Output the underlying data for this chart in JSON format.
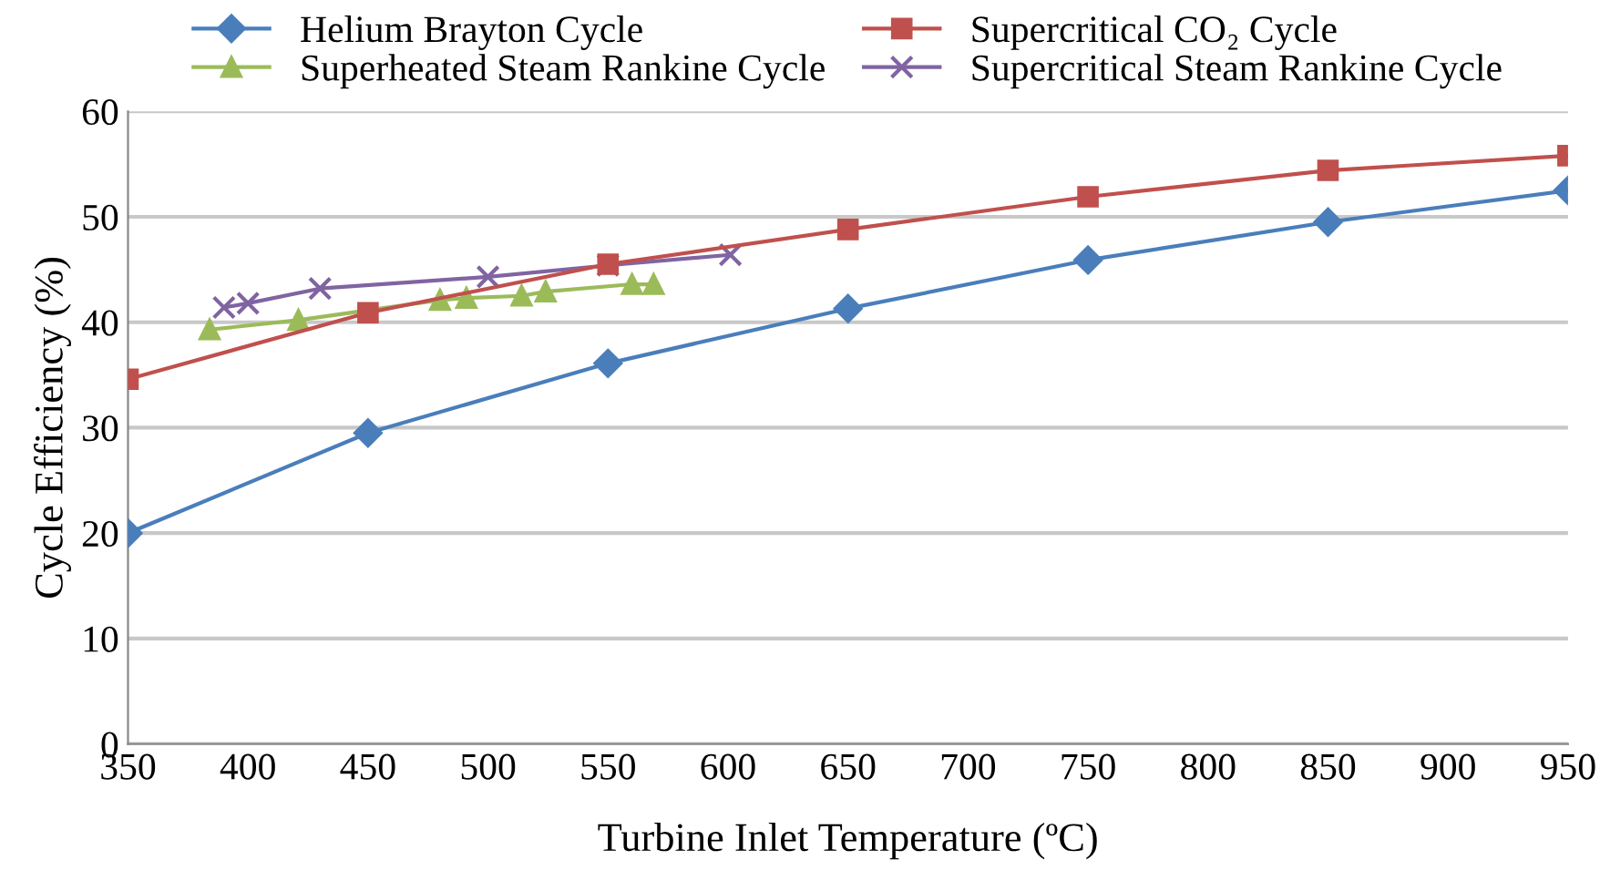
{
  "chart_data": {
    "type": "line",
    "xlabel": "Turbine Inlet Temperature (ºC)",
    "ylabel": "Cycle Efficiency (%)",
    "xlim": [
      350,
      950
    ],
    "xticks": [
      350,
      400,
      450,
      500,
      550,
      600,
      650,
      700,
      750,
      800,
      850,
      900,
      950
    ],
    "ylim": [
      0,
      60
    ],
    "yticks": [
      0,
      10,
      20,
      30,
      40,
      50,
      60
    ],
    "grid": "y",
    "legend": "top",
    "line_style": "solid",
    "series": [
      {
        "name": "Helium Brayton Cycle",
        "color": "#4a7ebb",
        "marker": "diamond",
        "x": [
          350,
          450,
          550,
          650,
          750,
          850,
          950
        ],
        "values": [
          20,
          29.5,
          36.1,
          41.3,
          45.9,
          49.5,
          52.5
        ]
      },
      {
        "name": "Supercritical CO₂ Cycle",
        "color": "#c0504d",
        "marker": "square",
        "x": [
          350,
          450,
          550,
          650,
          750,
          850,
          950
        ],
        "values": [
          34.6,
          40.9,
          45.5,
          48.8,
          51.9,
          54.4,
          55.8
        ]
      },
      {
        "name": "Superheated Steam Rankine Cycle",
        "color": "#9bbb59",
        "marker": "triangle",
        "x": [
          384,
          421,
          480,
          491,
          514,
          524,
          560,
          569
        ],
        "values": [
          39.3,
          40.2,
          42.1,
          42.3,
          42.5,
          42.9,
          43.6,
          43.6
        ]
      },
      {
        "name": "Supercritical Steam Rankine Cycle",
        "color": "#8064a2",
        "marker": "cross",
        "x": [
          390,
          400,
          430,
          500,
          550,
          601
        ],
        "values": [
          41.4,
          41.8,
          43.2,
          44.3,
          45.4,
          46.4
        ]
      }
    ]
  }
}
